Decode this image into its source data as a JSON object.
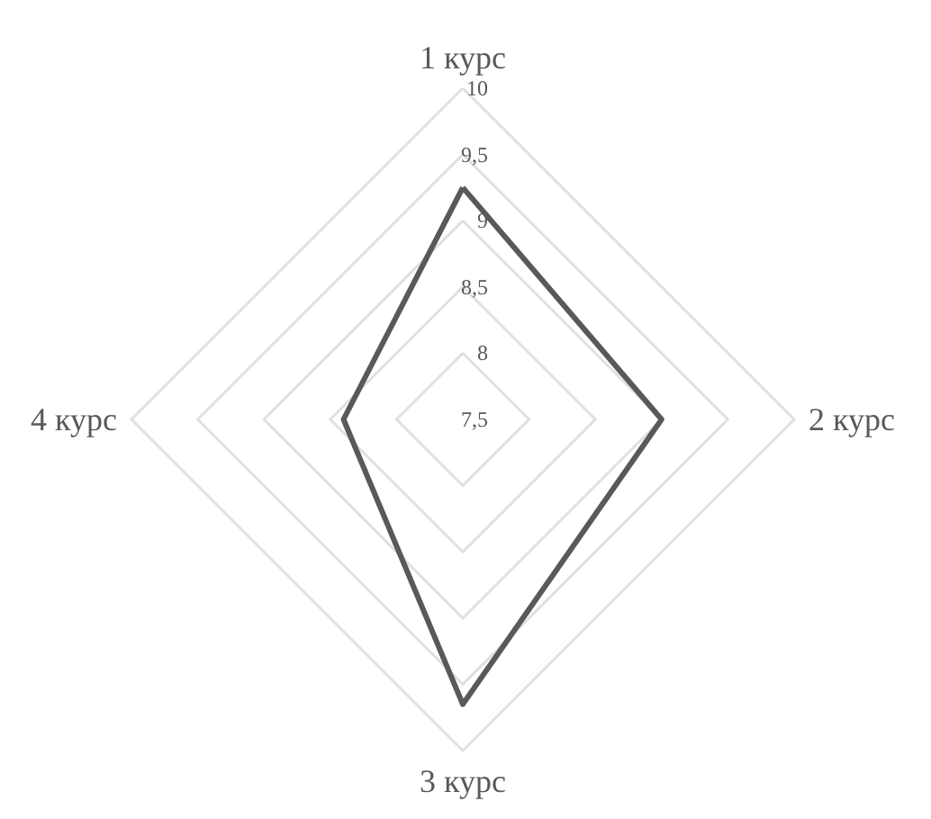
{
  "chart_data": {
    "type": "radar",
    "categories": [
      "1 курс",
      "2 курс",
      "3 курс",
      "4 курс"
    ],
    "series": [
      {
        "color": "#595959",
        "values": [
          9.25,
          9.0,
          9.65,
          8.4
        ]
      }
    ],
    "ylim": [
      7.5,
      10
    ],
    "yticks": [
      {
        "value": 7.5,
        "label": "7,5"
      },
      8,
      {
        "value": 8.5,
        "label": "8,5"
      },
      9,
      {
        "value": 9.5,
        "label": "9,5"
      },
      10
    ],
    "grid": true,
    "marker": "none",
    "line_style": "solid"
  }
}
